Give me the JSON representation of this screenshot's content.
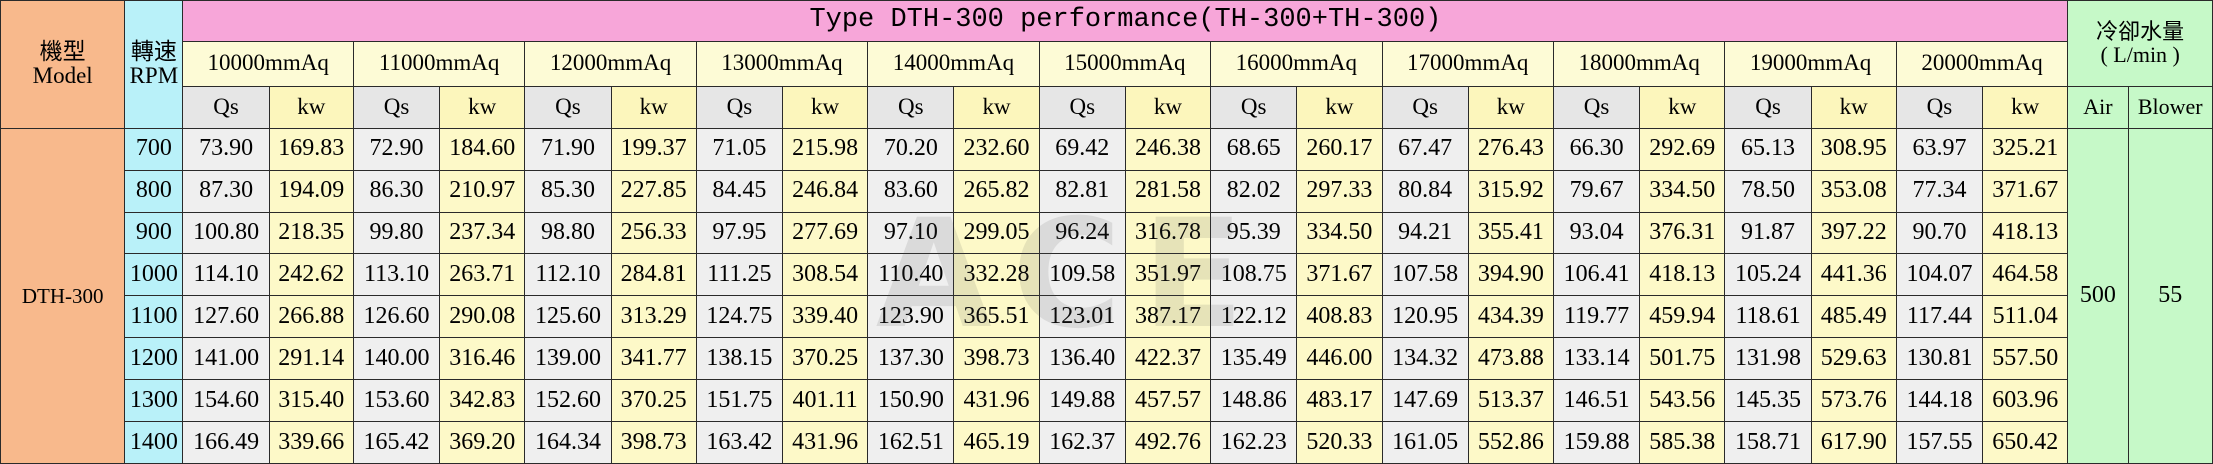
{
  "header": {
    "model_cn": "機型",
    "model_en": "Model",
    "rpm_cn": "轉速",
    "rpm_en": "RPM",
    "title": "Type DTH-300 performance(TH-300+TH-300)",
    "cooling_cn": "冷卻水量",
    "cooling_unit": "( L/min )",
    "air": "Air",
    "blower": "Blower",
    "qs": "Qs",
    "kw": "kw"
  },
  "pressures": [
    "10000mmAq",
    "11000mmAq",
    "12000mmAq",
    "13000mmAq",
    "14000mmAq",
    "15000mmAq",
    "16000mmAq",
    "17000mmAq",
    "18000mmAq",
    "19000mmAq",
    "20000mmAq"
  ],
  "model": "DTH-300",
  "cooling": {
    "air": "500",
    "blower": "55"
  },
  "rows": [
    {
      "rpm": "700",
      "values": [
        "73.90",
        "169.83",
        "72.90",
        "184.60",
        "71.90",
        "199.37",
        "71.05",
        "215.98",
        "70.20",
        "232.60",
        "69.42",
        "246.38",
        "68.65",
        "260.17",
        "67.47",
        "276.43",
        "66.30",
        "292.69",
        "65.13",
        "308.95",
        "63.97",
        "325.21"
      ]
    },
    {
      "rpm": "800",
      "values": [
        "87.30",
        "194.09",
        "86.30",
        "210.97",
        "85.30",
        "227.85",
        "84.45",
        "246.84",
        "83.60",
        "265.82",
        "82.81",
        "281.58",
        "82.02",
        "297.33",
        "80.84",
        "315.92",
        "79.67",
        "334.50",
        "78.50",
        "353.08",
        "77.34",
        "371.67"
      ]
    },
    {
      "rpm": "900",
      "values": [
        "100.80",
        "218.35",
        "99.80",
        "237.34",
        "98.80",
        "256.33",
        "97.95",
        "277.69",
        "97.10",
        "299.05",
        "96.24",
        "316.78",
        "95.39",
        "334.50",
        "94.21",
        "355.41",
        "93.04",
        "376.31",
        "91.87",
        "397.22",
        "90.70",
        "418.13"
      ]
    },
    {
      "rpm": "1000",
      "values": [
        "114.10",
        "242.62",
        "113.10",
        "263.71",
        "112.10",
        "284.81",
        "111.25",
        "308.54",
        "110.40",
        "332.28",
        "109.58",
        "351.97",
        "108.75",
        "371.67",
        "107.58",
        "394.90",
        "106.41",
        "418.13",
        "105.24",
        "441.36",
        "104.07",
        "464.58"
      ]
    },
    {
      "rpm": "1100",
      "values": [
        "127.60",
        "266.88",
        "126.60",
        "290.08",
        "125.60",
        "313.29",
        "124.75",
        "339.40",
        "123.90",
        "365.51",
        "123.01",
        "387.17",
        "122.12",
        "408.83",
        "120.95",
        "434.39",
        "119.77",
        "459.94",
        "118.61",
        "485.49",
        "117.44",
        "511.04"
      ]
    },
    {
      "rpm": "1200",
      "values": [
        "141.00",
        "291.14",
        "140.00",
        "316.46",
        "139.00",
        "341.77",
        "138.15",
        "370.25",
        "137.30",
        "398.73",
        "136.40",
        "422.37",
        "135.49",
        "446.00",
        "134.32",
        "473.88",
        "133.14",
        "501.75",
        "131.98",
        "529.63",
        "130.81",
        "557.50"
      ]
    },
    {
      "rpm": "1300",
      "values": [
        "154.60",
        "315.40",
        "153.60",
        "342.83",
        "152.60",
        "370.25",
        "151.75",
        "401.11",
        "150.90",
        "431.96",
        "149.88",
        "457.57",
        "148.86",
        "483.17",
        "147.69",
        "513.37",
        "146.51",
        "543.56",
        "145.35",
        "573.76",
        "144.18",
        "603.96"
      ]
    },
    {
      "rpm": "1400",
      "values": [
        "166.49",
        "339.66",
        "165.42",
        "369.20",
        "164.34",
        "398.73",
        "163.42",
        "431.96",
        "162.51",
        "465.19",
        "162.37",
        "492.76",
        "162.23",
        "520.33",
        "161.05",
        "552.86",
        "159.88",
        "585.38",
        "158.71",
        "617.90",
        "157.55",
        "650.42"
      ]
    }
  ]
}
